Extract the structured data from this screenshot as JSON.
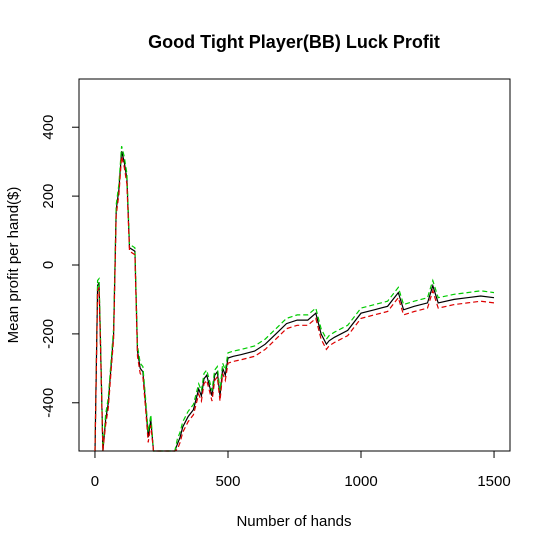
{
  "chart_data": {
    "type": "line",
    "title": "Good Tight Player(BB) Luck Profit",
    "xlabel": "Number of hands",
    "ylabel": "Mean profit per hand($)",
    "xlim": [
      -60,
      1560
    ],
    "ylim": [
      -540,
      540
    ],
    "xticks": [
      0,
      500,
      1000,
      1500
    ],
    "yticks": [
      -400,
      -200,
      0,
      200,
      400
    ],
    "grid": false,
    "legend": "none",
    "series": [
      {
        "color": "#000000",
        "style": "solid",
        "x": [
          0,
          10,
          15,
          20,
          30,
          40,
          50,
          60,
          70,
          80,
          90,
          100,
          110,
          120,
          130,
          150,
          160,
          170,
          180,
          190,
          200,
          210,
          220,
          230,
          240,
          260,
          280,
          300,
          310,
          320,
          330,
          350,
          370,
          390,
          400,
          410,
          420,
          430,
          440,
          450,
          460,
          470,
          480,
          490,
          500,
          520,
          550,
          600,
          640,
          680,
          720,
          760,
          800,
          830,
          850,
          870,
          880,
          900,
          950,
          1000,
          1050,
          1100,
          1140,
          1160,
          1200,
          1250,
          1270,
          1290,
          1350,
          1400,
          1450,
          1500
        ],
        "y": [
          -540,
          -60,
          -50,
          -200,
          -540,
          -450,
          -400,
          -300,
          -200,
          160,
          220,
          330,
          300,
          250,
          50,
          40,
          -250,
          -300,
          -310,
          -400,
          -500,
          -450,
          -540,
          -540,
          -540,
          -540,
          -540,
          -540,
          -520,
          -500,
          -470,
          -440,
          -420,
          -360,
          -380,
          -330,
          -320,
          -350,
          -380,
          -320,
          -310,
          -380,
          -300,
          -320,
          -270,
          -265,
          -260,
          -250,
          -230,
          -200,
          -170,
          -160,
          -160,
          -140,
          -200,
          -230,
          -220,
          -210,
          -190,
          -140,
          -130,
          -120,
          -80,
          -130,
          -120,
          -110,
          -60,
          -110,
          -100,
          -95,
          -90,
          -95
        ]
      },
      {
        "color": "#00cc00",
        "style": "dashed",
        "x": [
          0,
          10,
          15,
          20,
          30,
          40,
          50,
          60,
          70,
          80,
          90,
          100,
          110,
          120,
          130,
          150,
          160,
          170,
          180,
          190,
          200,
          210,
          220,
          230,
          240,
          260,
          280,
          300,
          310,
          320,
          330,
          350,
          370,
          390,
          400,
          410,
          420,
          430,
          440,
          450,
          460,
          470,
          480,
          490,
          500,
          520,
          550,
          600,
          640,
          680,
          720,
          760,
          800,
          830,
          850,
          870,
          880,
          900,
          950,
          1000,
          1050,
          1100,
          1140,
          1160,
          1200,
          1250,
          1270,
          1290,
          1350,
          1400,
          1450,
          1500
        ],
        "y": [
          -540,
          -45,
          -40,
          -185,
          -540,
          -435,
          -385,
          -285,
          -185,
          175,
          235,
          345,
          315,
          265,
          60,
          50,
          -235,
          -285,
          -295,
          -385,
          -485,
          -435,
          -540,
          -540,
          -540,
          -540,
          -540,
          -540,
          -505,
          -485,
          -455,
          -425,
          -405,
          -345,
          -365,
          -315,
          -305,
          -335,
          -365,
          -305,
          -295,
          -365,
          -285,
          -305,
          -255,
          -250,
          -245,
          -235,
          -215,
          -185,
          -155,
          -145,
          -145,
          -125,
          -185,
          -215,
          -205,
          -195,
          -175,
          -125,
          -115,
          -105,
          -65,
          -115,
          -105,
          -95,
          -45,
          -95,
          -85,
          -80,
          -75,
          -80
        ]
      },
      {
        "color": "#dd0000",
        "style": "dashed",
        "x": [
          0,
          10,
          15,
          20,
          30,
          40,
          50,
          60,
          70,
          80,
          90,
          100,
          110,
          120,
          130,
          150,
          160,
          170,
          180,
          190,
          200,
          210,
          220,
          230,
          240,
          260,
          280,
          300,
          310,
          320,
          330,
          350,
          370,
          390,
          400,
          410,
          420,
          430,
          440,
          450,
          460,
          470,
          480,
          490,
          500,
          520,
          550,
          600,
          640,
          680,
          720,
          760,
          800,
          830,
          850,
          870,
          880,
          900,
          950,
          1000,
          1050,
          1100,
          1140,
          1160,
          1200,
          1250,
          1270,
          1290,
          1350,
          1400,
          1450,
          1500
        ],
        "y": [
          -540,
          -75,
          -65,
          -215,
          -540,
          -465,
          -415,
          -315,
          -215,
          145,
          205,
          315,
          285,
          235,
          40,
          30,
          -265,
          -315,
          -325,
          -415,
          -515,
          -465,
          -540,
          -540,
          -540,
          -540,
          -540,
          -540,
          -535,
          -515,
          -485,
          -455,
          -435,
          -375,
          -395,
          -345,
          -335,
          -365,
          -395,
          -335,
          -325,
          -395,
          -315,
          -335,
          -285,
          -280,
          -275,
          -265,
          -245,
          -215,
          -185,
          -175,
          -175,
          -155,
          -215,
          -245,
          -235,
          -225,
          -205,
          -155,
          -145,
          -135,
          -95,
          -145,
          -135,
          -125,
          -75,
          -125,
          -115,
          -110,
          -105,
          -110
        ]
      }
    ]
  }
}
